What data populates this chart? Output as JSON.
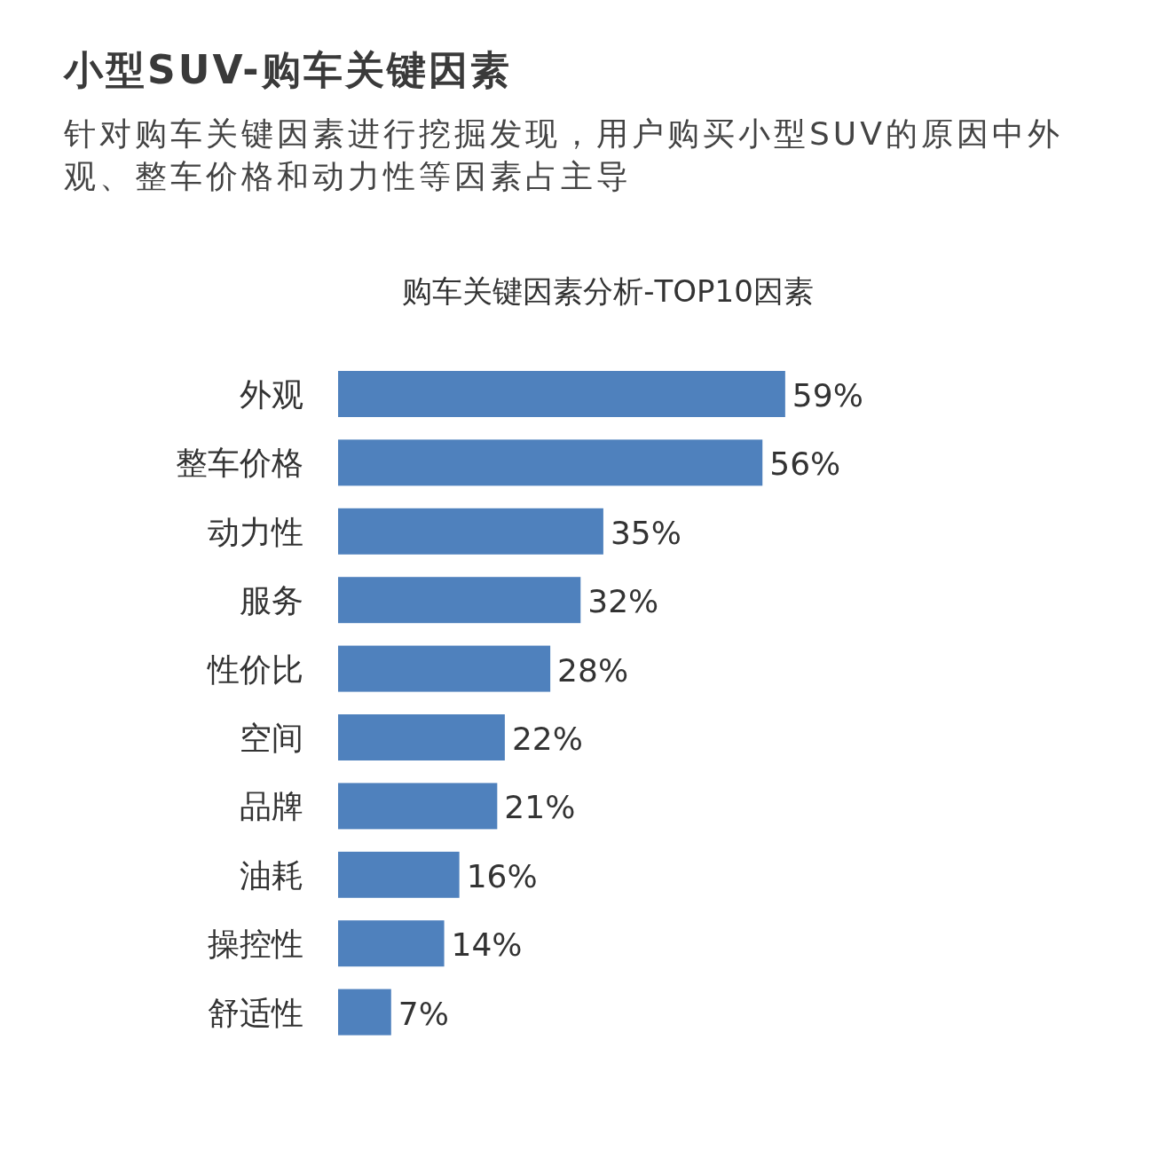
{
  "chart_data": {
    "type": "bar",
    "orientation": "horizontal",
    "title": "小型SUV-购车关键因素",
    "subtitle": "针对购车关键因素进行挖掘发现，用户购买小型SUV的原因中外观、整车价格和动力性等因素占主导",
    "annotations": [
      "购车关键因素分析-TOP10因素"
    ],
    "categories": [
      "外观",
      "整车价格",
      "动力性",
      "服务",
      "性价比",
      "空间",
      "品牌",
      "油耗",
      "操控性",
      "舒适性"
    ],
    "values": [
      59,
      56,
      35,
      32,
      28,
      22,
      21,
      16,
      14,
      7
    ],
    "value_labels": [
      "59%",
      "56%",
      "35%",
      "32%",
      "28%",
      "22%",
      "21%",
      "16%",
      "14%",
      "7%"
    ],
    "color": "#4f81bd"
  }
}
